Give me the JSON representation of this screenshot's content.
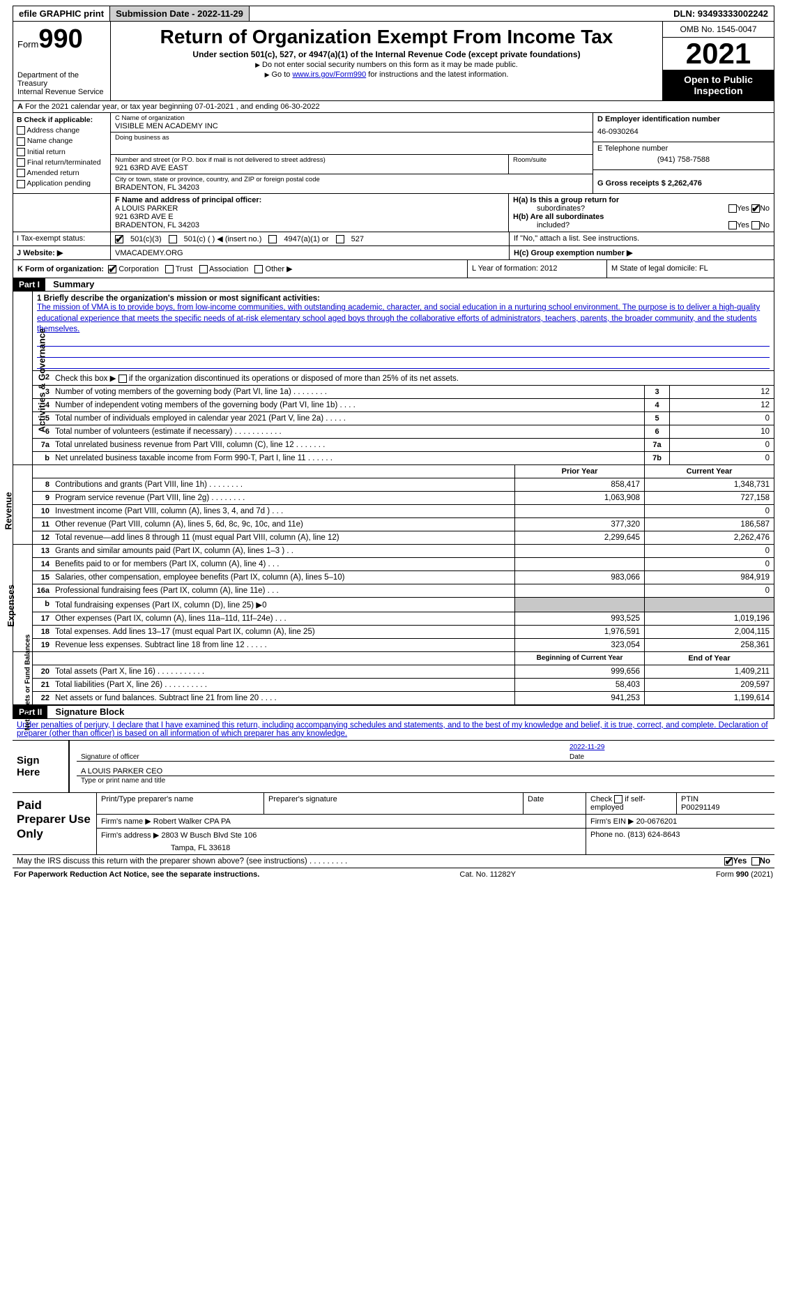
{
  "topbar": {
    "efile": "efile GRAPHIC print",
    "submission": "Submission Date - 2022-11-29",
    "dln": "DLN: 93493333002242"
  },
  "header": {
    "formword": "Form",
    "formnum": "990",
    "dept": "Department of the Treasury",
    "irs": "Internal Revenue Service",
    "title": "Return of Organization Exempt From Income Tax",
    "section": "Under section 501(c), 527, or 4947(a)(1) of the Internal Revenue Code (except private foundations)",
    "note1": "Do not enter social security numbers on this form as it may be made public.",
    "note2_a": "Go to ",
    "note2_link": "www.irs.gov/Form990",
    "note2_b": " for instructions and the latest information.",
    "omb": "OMB No. 1545-0047",
    "year": "2021",
    "open1": "Open to Public",
    "open2": "Inspection"
  },
  "rowA": {
    "text": "For the 2021 calendar year, or tax year beginning 07-01-2021    , and ending 06-30-2022",
    "prefix": "A"
  },
  "B": {
    "title": "B Check if applicable:",
    "items": [
      "Address change",
      "Name change",
      "Initial return",
      "Final return/terminated",
      "Amended return",
      "Application pending"
    ]
  },
  "C": {
    "namelabel": "C Name of organization",
    "name": "VISIBLE MEN ACADEMY INC",
    "dbalabel": "Doing business as",
    "dba": "",
    "streetlabel": "Number and street (or P.O. box if mail is not delivered to street address)",
    "street": "921 63RD AVE EAST",
    "roomlabel": "Room/suite",
    "citylabel": "City or town, state or province, country, and ZIP or foreign postal code",
    "city": "BRADENTON, FL  34203"
  },
  "D": {
    "label": "D Employer identification number",
    "val": "46-0930264"
  },
  "E": {
    "label": "E Telephone number",
    "val": "(941) 758-7588"
  },
  "G": {
    "label": "G Gross receipts $ 2,262,476"
  },
  "F": {
    "label": "F  Name and address of principal officer:",
    "name": "A LOUIS PARKER",
    "addr1": "921 63RD AVE E",
    "addr2": "BRADENTON, FL  34203"
  },
  "H": {
    "a": "H(a)  Is this a group return for",
    "a2": "subordinates?",
    "yes": "Yes",
    "no": "No",
    "b": "H(b)  Are all subordinates",
    "b2": "included?",
    "note": "If \"No,\" attach a list. See instructions.",
    "c": "H(c)  Group exemption number ▶"
  },
  "I": {
    "label": "I    Tax-exempt status:",
    "c3": "501(c)(3)",
    "c": "501(c) (  ) ◀ (insert no.)",
    "a1": "4947(a)(1) or",
    "527": "527"
  },
  "J": {
    "label": "J   Website: ▶",
    "val": "VMACADEMY.ORG"
  },
  "K": {
    "label": "K Form of organization:",
    "corp": "Corporation",
    "trust": "Trust",
    "assoc": "Association",
    "other": "Other ▶"
  },
  "L": {
    "text": "L Year of formation: 2012"
  },
  "M": {
    "text": "M State of legal domicile: FL"
  },
  "part1": {
    "hdr": "Part I",
    "title": "Summary"
  },
  "mission": {
    "label": "1  Briefly describe the organization's mission or most significant activities:",
    "text": "The mission of VMA is to provide boys, from low-income communities, with outstanding academic, character, and social education in a nurturing school environment. The purpose is to deliver a high-quality educational experience that meets the specific needs of at-risk elementary school aged boys through the collaborative efforts of administrators, teachers, parents, the broader community, and the students themselves."
  },
  "gov": {
    "l2": "Check this box ▶        if the organization discontinued its operations or disposed of more than 25% of its net assets.",
    "rows": [
      {
        "n": "3",
        "t": "Number of voting members of the governing body (Part VI, line 1a)   .    .    .    .    .    .    .    .",
        "box": "3",
        "v": "12"
      },
      {
        "n": "4",
        "t": "Number of independent voting members of the governing body (Part VI, line 1b)    .    .    .    .",
        "box": "4",
        "v": "12"
      },
      {
        "n": "5",
        "t": "Total number of individuals employed in calendar year 2021 (Part V, line 2a)    .    .    .    .    .",
        "box": "5",
        "v": "0"
      },
      {
        "n": "6",
        "t": "Total number of volunteers (estimate if necessary)    .    .    .    .    .    .    .    .    .    .    .",
        "box": "6",
        "v": "10"
      },
      {
        "n": "7a",
        "t": "Total unrelated business revenue from Part VIII, column (C), line 12    .    .    .    .    .    .    .",
        "box": "7a",
        "v": "0"
      },
      {
        "n": "b",
        "t": "Net unrelated business taxable income from Form 990-T, Part I, line 11    .    .    .    .    .    .",
        "box": "7b",
        "v": "0"
      }
    ]
  },
  "rev_hdr": {
    "prior": "Prior Year",
    "curr": "Current Year"
  },
  "rev": [
    {
      "n": "8",
      "t": "Contributions and grants (Part VIII, line 1h)    .    .    .    .    .    .    .    .",
      "p": "858,417",
      "c": "1,348,731"
    },
    {
      "n": "9",
      "t": "Program service revenue (Part VIII, line 2g)    .    .    .    .    .    .    .    .",
      "p": "1,063,908",
      "c": "727,158"
    },
    {
      "n": "10",
      "t": "Investment income (Part VIII, column (A), lines 3, 4, and 7d )    .    .    .",
      "p": "",
      "c": "0"
    },
    {
      "n": "11",
      "t": "Other revenue (Part VIII, column (A), lines 5, 6d, 8c, 9c, 10c, and 11e)",
      "p": "377,320",
      "c": "186,587"
    },
    {
      "n": "12",
      "t": "Total revenue—add lines 8 through 11 (must equal Part VIII, column (A), line 12)",
      "p": "2,299,645",
      "c": "2,262,476"
    }
  ],
  "exp": [
    {
      "n": "13",
      "t": "Grants and similar amounts paid (Part IX, column (A), lines 1–3 )   .    .",
      "p": "",
      "c": "0"
    },
    {
      "n": "14",
      "t": "Benefits paid to or for members (Part IX, column (A), line 4)    .    .    .",
      "p": "",
      "c": "0"
    },
    {
      "n": "15",
      "t": "Salaries, other compensation, employee benefits (Part IX, column (A), lines 5–10)",
      "p": "983,066",
      "c": "984,919"
    },
    {
      "n": "16a",
      "t": "Professional fundraising fees (Part IX, column (A), line 11e)    .    .    .",
      "p": "",
      "c": "0"
    },
    {
      "n": "b",
      "t": "Total fundraising expenses (Part IX, column (D), line 25) ▶0",
      "p": "gray",
      "c": "gray"
    },
    {
      "n": "17",
      "t": "Other expenses (Part IX, column (A), lines 11a–11d, 11f–24e)    .    .    .",
      "p": "993,525",
      "c": "1,019,196"
    },
    {
      "n": "18",
      "t": "Total expenses. Add lines 13–17 (must equal Part IX, column (A), line 25)",
      "p": "1,976,591",
      "c": "2,004,115"
    },
    {
      "n": "19",
      "t": "Revenue less expenses. Subtract line 18 from line 12    .    .    .    .    .",
      "p": "323,054",
      "c": "258,361"
    }
  ],
  "na_hdr": {
    "prior": "Beginning of Current Year",
    "curr": "End of Year"
  },
  "na": [
    {
      "n": "20",
      "t": "Total assets (Part X, line 16)    .    .    .    .    .    .    .    .    .    .    .",
      "p": "999,656",
      "c": "1,409,211"
    },
    {
      "n": "21",
      "t": "Total liabilities (Part X, line 26)    .    .    .    .    .    .    .    .    .    .",
      "p": "58,403",
      "c": "209,597"
    },
    {
      "n": "22",
      "t": "Net assets or fund balances. Subtract line 21 from line 20    .    .    .    .",
      "p": "941,253",
      "c": "1,199,614"
    }
  ],
  "part2": {
    "hdr": "Part II",
    "title": "Signature Block"
  },
  "sig": {
    "decl": "Under penalties of perjury, I declare that I have examined this return, including accompanying schedules and statements, and to the best of my knowledge and belief, it is true, correct, and complete. Declaration of preparer (other than officer) is based on all information of which preparer has any knowledge.",
    "signhere": "Sign Here",
    "sigoff": "Signature of officer",
    "date": "Date",
    "dateval": "2022-11-29",
    "name": "A LOUIS PARKER  CEO",
    "typelabel": "Type or print name and title"
  },
  "prep": {
    "title": "Paid Preparer Use Only",
    "h_name": "Print/Type preparer's name",
    "h_sig": "Preparer's signature",
    "h_date": "Date",
    "h_check": "Check          if self-employed",
    "h_ptin": "PTIN",
    "ptin": "P00291149",
    "firm_l": "Firm's name     ▶",
    "firm": "Robert Walker CPA PA",
    "ein_l": "Firm's EIN ▶",
    "ein": "20-0676201",
    "addr_l": "Firm's address ▶",
    "addr1": "2803 W Busch Blvd Ste 106",
    "addr2": "Tampa, FL  33618",
    "phone_l": "Phone no. (813) 624-8643"
  },
  "discuss": {
    "text": "May the IRS discuss this return with the preparer shown above? (see instructions)   .    .    .    .    .    .    .    .    .",
    "yes": "Yes",
    "no": "No"
  },
  "footer": {
    "left": "For Paperwork Reduction Act Notice, see the separate instructions.",
    "mid": "Cat. No. 11282Y",
    "right": "Form 990 (2021)"
  },
  "vtabs": {
    "gov": "Activities & Governance",
    "rev": "Revenue",
    "exp": "Expenses",
    "na": "Net Assets or Fund Balances"
  }
}
